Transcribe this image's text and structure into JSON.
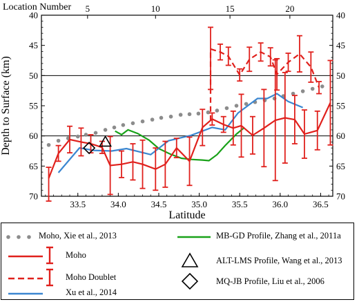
{
  "chart_data": {
    "type": "line",
    "xlabel": "Latitude",
    "ylabel": "Depth to Surface (km)",
    "x2label": "Location Number",
    "xlim": [
      33.05,
      36.65
    ],
    "ylim": [
      70,
      40
    ],
    "y_inverted": true,
    "xticks": [
      "33.5",
      "34.0",
      "34.5",
      "35.0",
      "35.5",
      "36.0",
      "36.5"
    ],
    "yticks": [
      "40",
      "45",
      "50",
      "55",
      "60",
      "65",
      "70"
    ],
    "x2ticks": [
      "5",
      "10",
      "15",
      "20"
    ],
    "x2_tick_positions_latitude": [
      33.62,
      34.46,
      35.38,
      36.12
    ],
    "reference_lines_y": [
      50,
      60
    ],
    "series": [
      {
        "name": "Moho, Xie et al., 2013",
        "style": "dotted-markers",
        "color": "#8c8c8c",
        "points": [
          [
            33.14,
            61.5
          ],
          [
            33.26,
            60.8
          ],
          [
            33.38,
            60.4
          ],
          [
            33.5,
            60.1
          ],
          [
            33.6,
            59.8
          ],
          [
            33.72,
            59.5
          ],
          [
            33.84,
            59.0
          ],
          [
            33.95,
            58.6
          ],
          [
            34.06,
            58.2
          ],
          [
            34.18,
            57.9
          ],
          [
            34.3,
            57.6
          ],
          [
            34.42,
            57.3
          ],
          [
            34.53,
            57.0
          ],
          [
            34.65,
            56.8
          ],
          [
            34.77,
            56.5
          ],
          [
            34.88,
            56.4
          ],
          [
            34.99,
            56.3
          ],
          [
            35.11,
            56.1
          ],
          [
            35.22,
            55.8
          ],
          [
            35.34,
            55.4
          ],
          [
            35.46,
            55.0
          ],
          [
            35.58,
            54.7
          ],
          [
            35.69,
            54.4
          ],
          [
            35.81,
            54.1
          ],
          [
            35.93,
            53.8
          ],
          [
            36.04,
            53.4
          ],
          [
            36.16,
            53.0
          ],
          [
            36.28,
            52.6
          ],
          [
            36.4,
            52.2
          ],
          [
            36.52,
            51.8
          ]
        ]
      },
      {
        "name": "Moho",
        "style": "solid-errorbar",
        "color": "#e0201c",
        "points": [
          [
            33.14,
            67.0
          ],
          [
            33.26,
            62.9
          ],
          [
            33.4,
            60.6
          ],
          [
            33.54,
            61.0
          ],
          [
            33.66,
            61.3
          ],
          [
            33.8,
            61.9
          ],
          [
            33.9,
            64.9
          ],
          [
            34.04,
            64.7
          ],
          [
            34.18,
            64.3
          ],
          [
            34.3,
            64.7
          ],
          [
            34.46,
            65.5
          ],
          [
            34.58,
            64.7
          ],
          [
            34.72,
            62.0
          ],
          [
            34.88,
            64.2
          ],
          [
            35.04,
            58.6
          ],
          [
            35.16,
            57.2
          ],
          [
            35.3,
            58.1
          ],
          [
            35.42,
            58.7
          ],
          [
            35.52,
            58.3
          ],
          [
            35.66,
            59.9
          ],
          [
            35.8,
            58.7
          ],
          [
            35.94,
            57.4
          ],
          [
            36.06,
            57.0
          ],
          [
            36.18,
            57.3
          ],
          [
            36.3,
            59.7
          ],
          [
            36.46,
            59.1
          ],
          [
            36.62,
            54.5
          ]
        ],
        "error": [
          [
            1.8,
            3.8
          ],
          [
            1.3,
            1.3
          ],
          [
            2.2,
            2.2
          ],
          [
            2.3,
            2.3
          ],
          [
            1.5,
            1.5
          ],
          [
            1.0,
            1.0
          ],
          [
            4.8,
            4.8
          ],
          [
            2.2,
            2.2
          ],
          [
            3.0,
            3.0
          ],
          [
            4.0,
            4.0
          ],
          [
            3.5,
            3.5
          ],
          [
            3.8,
            3.8
          ],
          [
            1.6,
            1.6
          ],
          [
            4.0,
            4.0
          ],
          [
            3.0,
            3.0
          ],
          [
            1.0,
            1.0
          ],
          [
            1.3,
            1.3
          ],
          [
            2.8,
            2.8
          ],
          [
            5.2,
            5.2
          ],
          [
            3.1,
            3.1
          ],
          [
            6.4,
            6.4
          ],
          [
            10.0,
            10.0
          ],
          [
            7.5,
            7.5
          ],
          [
            4.0,
            4.0
          ],
          [
            4.0,
            4.0
          ],
          [
            3.2,
            3.2
          ],
          [
            7.0,
            7.0
          ]
        ]
      },
      {
        "name": "Moho Doublet",
        "style": "dashed-errorbar",
        "color": "#e0201c",
        "points": [
          [
            35.14,
            57.5
          ],
          [
            35.14,
            45.6
          ],
          [
            35.26,
            46.1
          ],
          [
            35.36,
            46.8
          ],
          [
            35.5,
            49.9
          ],
          [
            35.62,
            47.3
          ],
          [
            35.76,
            46.1
          ],
          [
            35.88,
            46.9
          ],
          [
            35.96,
            49.8
          ],
          [
            36.1,
            47.8
          ],
          [
            36.24,
            46.4
          ],
          [
            36.38,
            48.6
          ],
          [
            36.48,
            52.0
          ]
        ],
        "error": [
          [
            0,
            0
          ],
          [
            3.6,
            6.7
          ],
          [
            1.3,
            1.3
          ],
          [
            1.5,
            1.5
          ],
          [
            1.0,
            1.0
          ],
          [
            2.0,
            2.0
          ],
          [
            1.5,
            1.5
          ],
          [
            1.5,
            1.5
          ],
          [
            2.6,
            2.6
          ],
          [
            1.5,
            1.5
          ],
          [
            3.0,
            3.0
          ],
          [
            2.5,
            2.5
          ],
          [
            1.0,
            1.0
          ]
        ]
      },
      {
        "name": "Xu et al., 2014",
        "style": "solid",
        "color": "#3b86d0",
        "points": [
          [
            33.26,
            66.1
          ],
          [
            33.52,
            62.0
          ],
          [
            33.7,
            62.4
          ],
          [
            33.92,
            62.5
          ],
          [
            34.1,
            62.1
          ],
          [
            34.4,
            63.1
          ],
          [
            34.62,
            60.8
          ],
          [
            34.9,
            59.9
          ],
          [
            35.16,
            58.6
          ],
          [
            35.32,
            59.0
          ],
          [
            35.48,
            56.2
          ],
          [
            35.72,
            53.8
          ],
          [
            35.84,
            53.8
          ],
          [
            35.96,
            53.0
          ],
          [
            36.1,
            54.3
          ],
          [
            36.28,
            55.3
          ]
        ]
      },
      {
        "name": "MB-GD Profile, Zhang et al., 2011a",
        "style": "solid",
        "color": "#18a118",
        "points": [
          [
            33.96,
            59.2
          ],
          [
            34.04,
            59.8
          ],
          [
            34.12,
            59.0
          ],
          [
            34.24,
            59.6
          ],
          [
            34.38,
            60.7
          ],
          [
            34.5,
            62.1
          ],
          [
            34.64,
            63.0
          ],
          [
            34.78,
            63.7
          ],
          [
            34.9,
            63.9
          ],
          [
            35.04,
            64.0
          ],
          [
            35.12,
            64.1
          ],
          [
            35.22,
            63.1
          ],
          [
            35.32,
            61.6
          ],
          [
            35.46,
            59.7
          ],
          [
            35.56,
            58.6
          ]
        ]
      },
      {
        "name": "ALT-LMS Profile, Wang et al., 2013",
        "style": "triangle-marker",
        "color": "#000000",
        "points": [
          [
            33.84,
            61.0
          ]
        ]
      },
      {
        "name": "MQ-JB Profile, Liu et al., 2006",
        "style": "diamond-marker",
        "color": "#000000",
        "points": [
          [
            33.64,
            62.0
          ]
        ]
      }
    ],
    "legend_placement": "bottom-box"
  }
}
